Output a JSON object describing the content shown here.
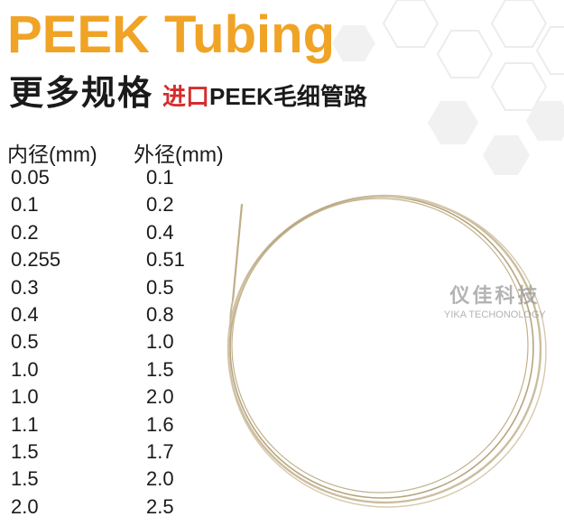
{
  "title": "PEEK Tubing",
  "subtitle": {
    "main": "更多规格",
    "accent": "进口",
    "rest": "PEEK毛细管路"
  },
  "table": {
    "headers": [
      "内径(mm)",
      "外径(mm)"
    ],
    "rows": [
      [
        "0.05",
        "0.1"
      ],
      [
        "0.1",
        "0.2"
      ],
      [
        "0.2",
        "0.4"
      ],
      [
        "0.255",
        "0.51"
      ],
      [
        "0.3",
        "0.5"
      ],
      [
        "0.4",
        "0.8"
      ],
      [
        "0.5",
        "1.0"
      ],
      [
        "1.0",
        "1.5"
      ],
      [
        "1.0",
        "2.0"
      ],
      [
        "1.1",
        "1.6"
      ],
      [
        "1.5",
        "1.7"
      ],
      [
        "1.5",
        "2.0"
      ],
      [
        "2.0",
        "2.5"
      ]
    ]
  },
  "watermark": {
    "cn": "仪佳科技",
    "en": "YIKA TECHONOLOGY"
  },
  "colors": {
    "title": "#f0a325",
    "accent": "#d42d2d",
    "tubing": "#c9b898",
    "hex": "#ececec"
  }
}
